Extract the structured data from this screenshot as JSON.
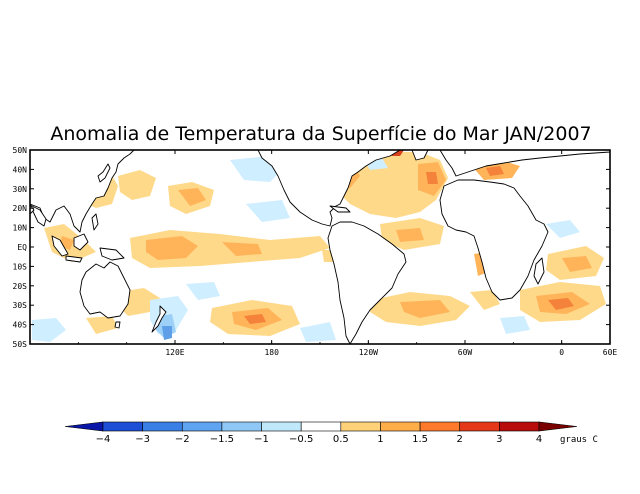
{
  "title": "Anomalia de Temperatura da Superfície do Mar JAN/2007",
  "map": {
    "lat_labels": [
      "50N",
      "40N",
      "30N",
      "20N",
      "10N",
      "EQ",
      "10S",
      "20S",
      "30S",
      "40S",
      "50S"
    ],
    "lon_labels": [
      "120E",
      "180",
      "120W",
      "60W",
      "0",
      "60E"
    ],
    "lat_range": [
      -50,
      50
    ],
    "lon_range": [
      30,
      390
    ]
  },
  "colorbar": {
    "labels": [
      "-4",
      "-3",
      "-2",
      "-1.5",
      "-1",
      "-0.5",
      "0.5",
      "1",
      "1.5",
      "2",
      "3",
      "4"
    ],
    "colors": [
      "#0a16a8",
      "#1c4fd6",
      "#3a7fe6",
      "#5fa4f0",
      "#8fc8f6",
      "#bfe8fb",
      "#ffffff",
      "#ffd27a",
      "#ffae4a",
      "#ff7a2a",
      "#e43818",
      "#b80c0c",
      "#7a0000"
    ],
    "unit_label": "graus C"
  },
  "anomaly_colors": {
    "pos_light": "#ffd98a",
    "pos_mid": "#ffb45a",
    "pos_strong": "#f5823a",
    "pos_max": "#d8401e",
    "neg_light": "#cfeeff",
    "neg_mid": "#9dd0f7",
    "neg_strong": "#5f9fe8"
  }
}
